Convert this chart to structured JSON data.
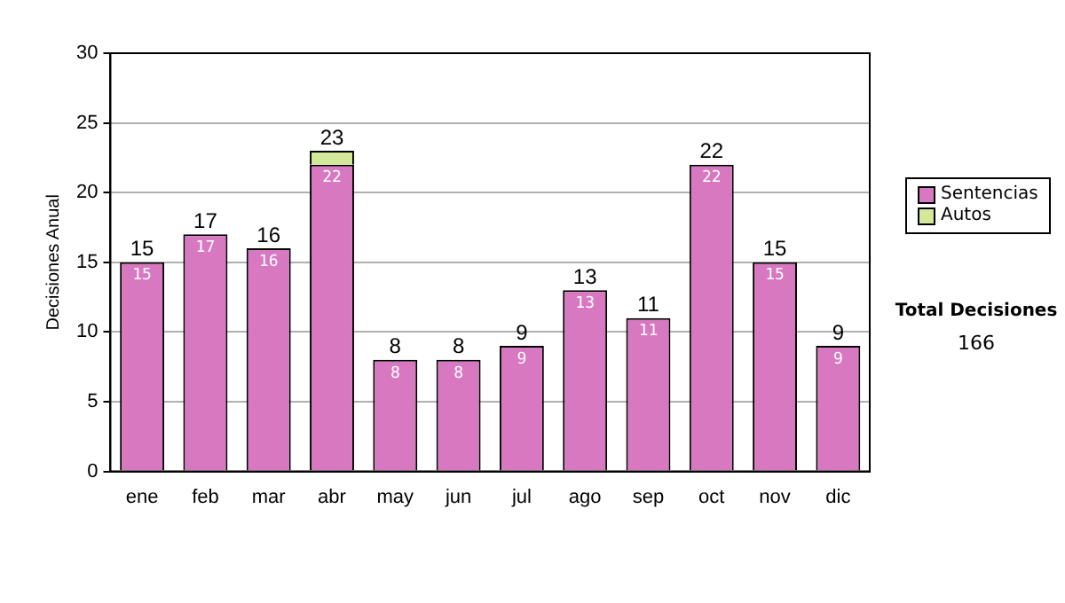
{
  "chart_data": {
    "type": "bar",
    "stacked": true,
    "ylabel": "Decisiones Anual",
    "categories": [
      "ene",
      "feb",
      "mar",
      "abr",
      "may",
      "jun",
      "jul",
      "ago",
      "sep",
      "oct",
      "nov",
      "dic"
    ],
    "series": [
      {
        "name": "Sentencias",
        "color": "#d878c0",
        "values": [
          15,
          17,
          16,
          22,
          8,
          8,
          9,
          13,
          11,
          22,
          15,
          9
        ],
        "value_labels": [
          "15",
          "17",
          "16",
          "22",
          "8",
          "8",
          "9",
          "13",
          "11",
          "22",
          "15",
          "9"
        ]
      },
      {
        "name": "Autos",
        "color": "#d4e89a",
        "values": [
          null,
          null,
          null,
          1,
          null,
          null,
          null,
          null,
          null,
          null,
          null,
          null
        ]
      }
    ],
    "totals": [
      "15",
      "17",
      "16",
      "23",
      "8",
      "8",
      "9",
      "13",
      "11",
      "22",
      "15",
      "9"
    ],
    "ylim": [
      0,
      30
    ],
    "yticks": [
      0,
      5,
      10,
      15,
      20,
      25,
      30
    ],
    "grid": "y",
    "legend": "right",
    "annotations": [
      "Total Decisiones",
      "166"
    ]
  }
}
